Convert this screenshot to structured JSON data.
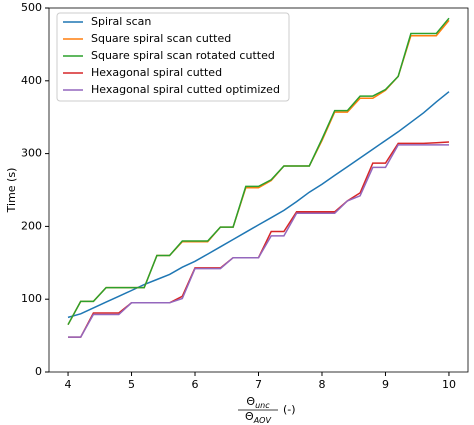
{
  "chart_data": {
    "type": "line",
    "ylabel": "Time (s)",
    "xlabel": {
      "numerator": "Θ",
      "numerator_sub": "unc",
      "denominator": "Θ",
      "denominator_sub": "AOV",
      "unit": "(-)"
    },
    "x": [
      4.0,
      4.2,
      4.4,
      4.6,
      4.8,
      5.0,
      5.2,
      5.4,
      5.6,
      5.8,
      6.0,
      6.2,
      6.4,
      6.6,
      6.8,
      7.0,
      7.2,
      7.4,
      7.6,
      7.8,
      8.0,
      8.2,
      8.4,
      8.6,
      8.8,
      9.0,
      9.2,
      9.4,
      9.6,
      9.8,
      10.0
    ],
    "series": [
      {
        "name": "Spiral scan",
        "color": "#1f77b4",
        "values": [
          75,
          80,
          88,
          96,
          104,
          112,
          120,
          127,
          134,
          144,
          152,
          162,
          172,
          182,
          192,
          202,
          212,
          222,
          234,
          247,
          258,
          270,
          282,
          294,
          306,
          318,
          330,
          343,
          356,
          371,
          385
        ]
      },
      {
        "name": "Square spiral scan cutted",
        "color": "#ff7f0e",
        "values": [
          65,
          97,
          97,
          116,
          116,
          116,
          116,
          160,
          160,
          179,
          179,
          179,
          199,
          199,
          253,
          253,
          263,
          283,
          283,
          283,
          318,
          357,
          357,
          376,
          376,
          387,
          406,
          462,
          462,
          462,
          483
        ]
      },
      {
        "name": "Square spiral scan rotated cutted",
        "color": "#2ca02c",
        "values": [
          65,
          97,
          97,
          116,
          116,
          116,
          116,
          160,
          160,
          180,
          180,
          180,
          199,
          199,
          255,
          255,
          264,
          283,
          283,
          283,
          320,
          359,
          359,
          379,
          379,
          388,
          406,
          465,
          465,
          465,
          486
        ]
      },
      {
        "name": "Hexagonal spiral cutted",
        "color": "#d62728",
        "values": [
          48,
          48,
          81,
          81,
          81,
          95,
          95,
          95,
          95,
          104,
          143,
          143,
          143,
          157,
          157,
          157,
          193,
          193,
          220,
          220,
          220,
          220,
          235,
          246,
          287,
          287,
          314,
          314,
          314,
          315,
          316
        ]
      },
      {
        "name": "Hexagonal spiral cutted optimized",
        "color": "#9467bd",
        "values": [
          48,
          48,
          79,
          79,
          79,
          95,
          95,
          95,
          95,
          101,
          142,
          142,
          142,
          157,
          157,
          157,
          187,
          187,
          218,
          218,
          218,
          218,
          235,
          242,
          281,
          281,
          312,
          312,
          312,
          312,
          312
        ]
      }
    ],
    "xlim": [
      3.7,
      10.3
    ],
    "xticks": [
      4,
      5,
      6,
      7,
      8,
      9,
      10
    ],
    "ylim": [
      0,
      500
    ],
    "yticks": [
      0,
      100,
      200,
      300,
      400,
      500
    ],
    "legend": "upper left"
  }
}
